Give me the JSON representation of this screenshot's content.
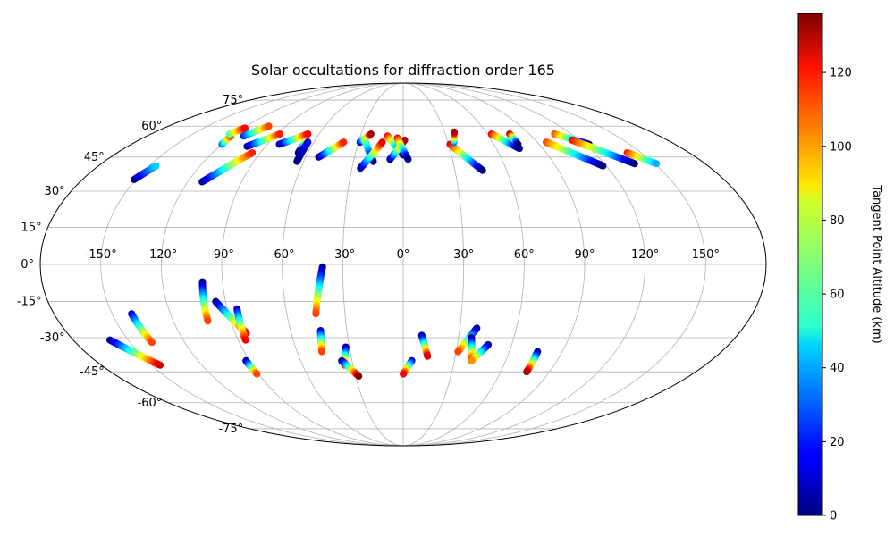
{
  "chart_data": {
    "type": "scatter",
    "projection": "mollweide",
    "title": "Solar occultations for diffraction order 165",
    "grid": true,
    "lon_ticks": [
      "-150°",
      "-120°",
      "-90°",
      "-60°",
      "-30°",
      "0°",
      "30°",
      "60°",
      "90°",
      "120°",
      "150°"
    ],
    "lon_values": [
      -150,
      -120,
      -90,
      -60,
      -30,
      0,
      30,
      60,
      90,
      120,
      150
    ],
    "lat_ticks": [
      "-75°",
      "-60°",
      "-45°",
      "-30°",
      "-15°",
      "0°",
      "15°",
      "30°",
      "45°",
      "60°",
      "75°"
    ],
    "lat_values": [
      -75,
      -60,
      -45,
      -30,
      -15,
      0,
      15,
      30,
      45,
      60,
      75
    ],
    "colorbar": {
      "label": "Tangent Point Altitude (km)",
      "ticks": [
        "0",
        "20",
        "40",
        "60",
        "80",
        "100",
        "120"
      ],
      "tick_values": [
        0,
        20,
        40,
        60,
        80,
        100,
        120
      ],
      "range": [
        0,
        136
      ],
      "colormap": "jet"
    },
    "color_scale": {
      "min": 0,
      "max": 136
    },
    "tracks": [
      {
        "lon0": -151,
        "lat0": 35,
        "lon1": -146,
        "lat1": 41,
        "alt0": 0,
        "alt1": 45
      },
      {
        "lon0": -120,
        "lat0": 51,
        "lon1": -121,
        "lat1": 55,
        "alt0": 30,
        "alt1": 110
      },
      {
        "lon0": -124,
        "lat0": 56,
        "lon1": -119,
        "lat1": 59,
        "alt0": 60,
        "alt1": 120
      },
      {
        "lon0": -112,
        "lat0": 55,
        "lon1": -103,
        "lat1": 60,
        "alt0": 20,
        "alt1": 110
      },
      {
        "lon0": -112,
        "lat0": 34,
        "lon1": -95,
        "lat1": 47,
        "alt0": 0,
        "alt1": 115
      },
      {
        "lon0": -102,
        "lat0": 50,
        "lon1": -88,
        "lat1": 56,
        "alt0": 0,
        "alt1": 115
      },
      {
        "lon0": -82,
        "lat0": 51,
        "lon1": -68,
        "lat1": 56,
        "alt0": 0,
        "alt1": 120
      },
      {
        "lon0": -66,
        "lat0": 53,
        "lon1": -66,
        "lat1": 47,
        "alt0": 110,
        "alt1": 0
      },
      {
        "lon0": -64,
        "lat0": 52,
        "lon1": -64,
        "lat1": 43,
        "alt0": 20,
        "alt1": 0
      },
      {
        "lon0": -52,
        "lat0": 45,
        "lon1": -40,
        "lat1": 52,
        "alt0": 0,
        "alt1": 115
      },
      {
        "lon0": -29,
        "lat0": 52,
        "lon1": -23,
        "lat1": 56,
        "alt0": 10,
        "alt1": 130
      },
      {
        "lon0": -26,
        "lat0": 53,
        "lon1": -18,
        "lat1": 43,
        "alt0": 80,
        "alt1": 0
      },
      {
        "lon0": -25,
        "lat0": 40,
        "lon1": -14,
        "lat1": 52,
        "alt0": 0,
        "alt1": 120
      },
      {
        "lon0": -11,
        "lat0": 55,
        "lon1": 0,
        "lat1": 46,
        "alt0": 120,
        "alt1": 0
      },
      {
        "lon0": -8,
        "lat0": 44,
        "lon1": 1,
        "lat1": 53,
        "alt0": 0,
        "alt1": 130
      },
      {
        "lon0": -4,
        "lat0": 54,
        "lon1": 3,
        "lat1": 44,
        "alt0": 120,
        "alt1": 0
      },
      {
        "lon0": 31,
        "lat0": 51,
        "lon1": 46,
        "lat1": 39,
        "alt0": 125,
        "alt1": 0
      },
      {
        "lon0": 34,
        "lat0": 52,
        "lon1": 37,
        "lat1": 57,
        "alt0": 30,
        "alt1": 130
      },
      {
        "lon0": 63,
        "lat0": 56,
        "lon1": 75,
        "lat1": 49,
        "alt0": 120,
        "alt1": 0
      },
      {
        "lon0": 76,
        "lat0": 56,
        "lon1": 76,
        "lat1": 51,
        "alt0": 130,
        "alt1": 0
      },
      {
        "lon0": 96,
        "lat0": 52,
        "lon1": 118,
        "lat1": 41,
        "alt0": 110,
        "alt1": 0
      },
      {
        "lon0": 108,
        "lat0": 56,
        "lon1": 123,
        "lat1": 51,
        "alt0": 110,
        "alt1": 0
      },
      {
        "lon0": 115,
        "lat0": 53,
        "lon1": 138,
        "lat1": 42,
        "alt0": 120,
        "alt1": 0
      },
      {
        "lon0": 141,
        "lat0": 47,
        "lon1": 151,
        "lat1": 42,
        "alt0": 115,
        "alt1": 40
      },
      {
        "lon0": -160,
        "lat0": -31,
        "lon1": -145,
        "lat1": -42,
        "alt0": 0,
        "alt1": 125
      },
      {
        "lon0": -140,
        "lat0": -20,
        "lon1": -138,
        "lat1": -32,
        "alt0": 10,
        "alt1": 110
      },
      {
        "lon0": -100,
        "lat0": -7,
        "lon1": -102,
        "lat1": -23,
        "alt0": 0,
        "alt1": 110
      },
      {
        "lon0": -95,
        "lat0": -15,
        "lon1": -84,
        "lat1": -28,
        "alt0": 0,
        "alt1": 120
      },
      {
        "lon0": -85,
        "lat0": -18,
        "lon1": -86,
        "lat1": -31,
        "alt0": 10,
        "alt1": 120
      },
      {
        "lon0": -92,
        "lat0": -40,
        "lon1": -91,
        "lat1": -46,
        "alt0": 0,
        "alt1": 110
      },
      {
        "lon0": -40,
        "lat0": -1,
        "lon1": -45,
        "lat1": -20,
        "alt0": 0,
        "alt1": 110
      },
      {
        "lon0": -44,
        "lat0": -27,
        "lon1": -46,
        "lat1": -36,
        "alt0": 10,
        "alt1": 110
      },
      {
        "lon0": -32,
        "lat0": -34,
        "lon1": -35,
        "lat1": -42,
        "alt0": 0,
        "alt1": 110
      },
      {
        "lon0": -36,
        "lat0": -40,
        "lon1": -28,
        "lat1": -47,
        "alt0": 0,
        "alt1": 135
      },
      {
        "lon0": 5,
        "lat0": -40,
        "lon1": 0,
        "lat1": -46,
        "alt0": 10,
        "alt1": 120
      },
      {
        "lon0": 10,
        "lat0": -29,
        "lon1": 14,
        "lat1": -38,
        "alt0": 0,
        "alt1": 125
      },
      {
        "lon0": 39,
        "lat0": -26,
        "lon1": 31,
        "lat1": -36,
        "alt0": 0,
        "alt1": 110
      },
      {
        "lon0": 37,
        "lat0": -30,
        "lon1": 40,
        "lat1": -40,
        "alt0": 0,
        "alt1": 120
      },
      {
        "lon0": 47,
        "lat0": -33,
        "lon1": 40,
        "lat1": -40,
        "alt0": 0,
        "alt1": 100
      },
      {
        "lon0": 76,
        "lat0": -36,
        "lon1": 76,
        "lat1": -45,
        "alt0": 0,
        "alt1": 130
      }
    ]
  }
}
